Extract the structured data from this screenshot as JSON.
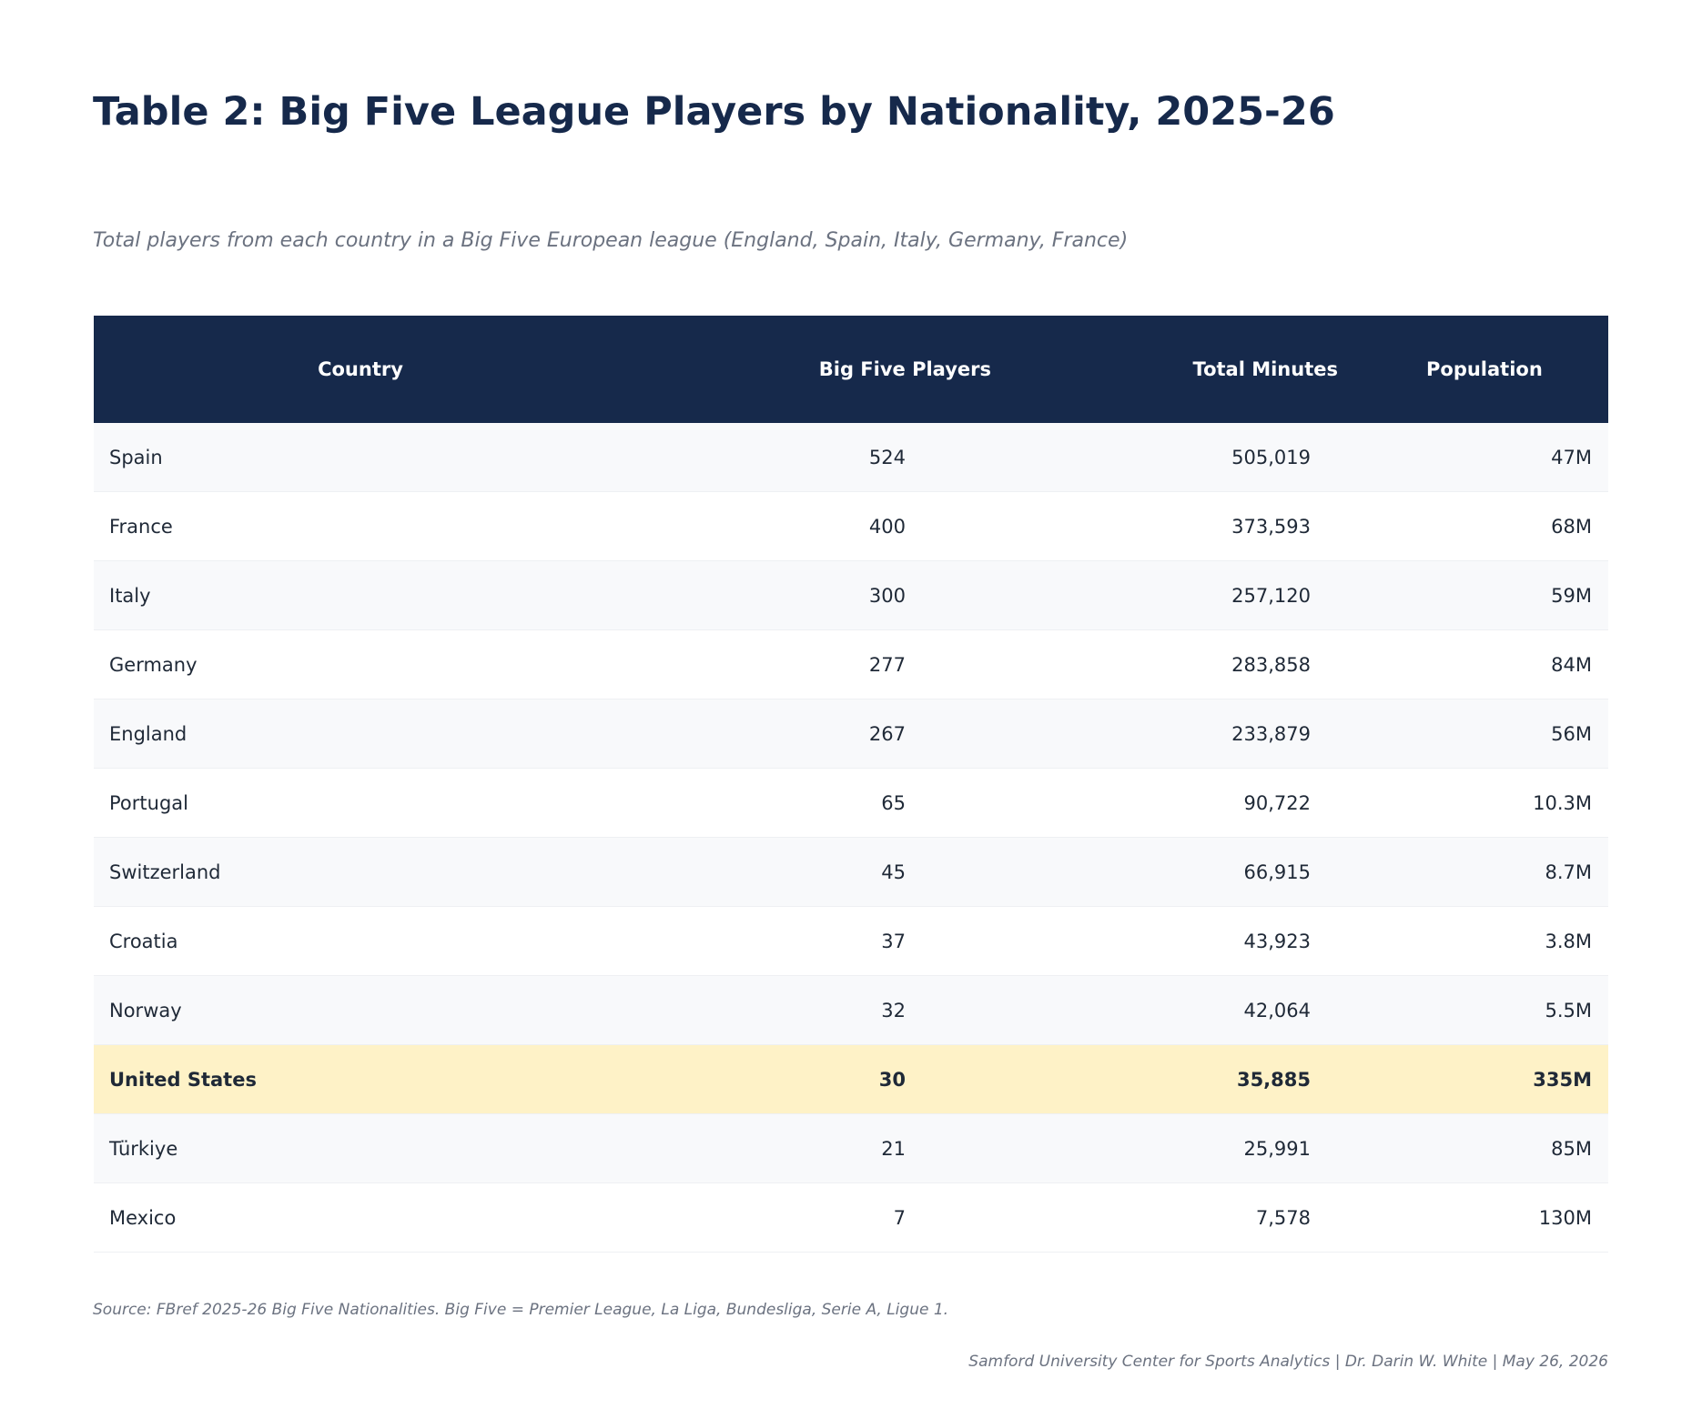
{
  "title": "Table 2: Big Five League Players by Nationality, 2025-26",
  "subtitle": "Total players from each country in a Big Five European league (England, Spain, Italy, Germany, France)",
  "table": {
    "headers": [
      "Country",
      "Big Five Players",
      "Total Minutes",
      "Population"
    ],
    "rows": [
      {
        "country": "Spain",
        "players": "524",
        "minutes": "505,019",
        "population": "47M"
      },
      {
        "country": "France",
        "players": "400",
        "minutes": "373,593",
        "population": "68M"
      },
      {
        "country": "Italy",
        "players": "300",
        "minutes": "257,120",
        "population": "59M"
      },
      {
        "country": "Germany",
        "players": "277",
        "minutes": "283,858",
        "population": "84M"
      },
      {
        "country": "England",
        "players": "267",
        "minutes": "233,879",
        "population": "56M"
      },
      {
        "country": "Portugal",
        "players": "65",
        "minutes": "90,722",
        "population": "10.3M"
      },
      {
        "country": "Switzerland",
        "players": "45",
        "minutes": "66,915",
        "population": "8.7M"
      },
      {
        "country": "Croatia",
        "players": "37",
        "minutes": "43,923",
        "population": "3.8M"
      },
      {
        "country": "Norway",
        "players": "32",
        "minutes": "42,064",
        "population": "5.5M"
      },
      {
        "country": "United States",
        "players": "30",
        "minutes": "35,885",
        "population": "335M",
        "highlight": true
      },
      {
        "country": "Türkiye",
        "players": "21",
        "minutes": "25,991",
        "population": "85M"
      },
      {
        "country": "Mexico",
        "players": "7",
        "minutes": "7,578",
        "population": "130M"
      }
    ]
  },
  "source": "Source: FBref 2025-26 Big Five Nationalities. Big Five = Premier League, La Liga, Bundesliga, Serie A, Ligue 1.",
  "credit": "Samford University Center for Sports Analytics | Dr. Darin W. White | May 26, 2026",
  "colors": {
    "header_bg": "#16294b",
    "title": "#16294b",
    "row_alt": "#f8f9fb",
    "highlight": "#fef2c7",
    "muted_text": "#6b7280"
  }
}
